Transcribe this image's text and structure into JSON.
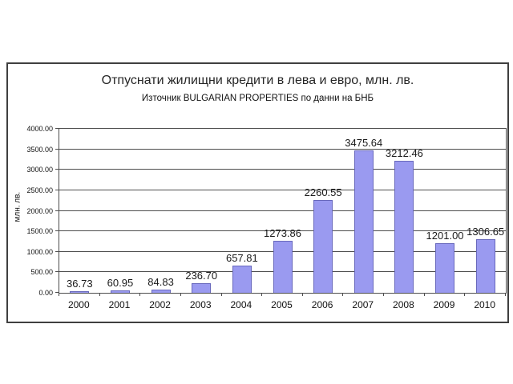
{
  "chart_data": {
    "type": "bar",
    "title": "Отпуснати жилищни кредити в лева и евро, млн. лв.",
    "subtitle": "Източник BULGARIAN PROPERTIES по данни на БНБ",
    "xlabel": "",
    "ylabel": "млн. лв.",
    "categories": [
      "2000",
      "2001",
      "2002",
      "2003",
      "2004",
      "2005",
      "2006",
      "2007",
      "2008",
      "2009",
      "2010"
    ],
    "values": [
      36.73,
      60.95,
      84.83,
      236.7,
      657.81,
      1273.86,
      2260.55,
      3475.64,
      3212.46,
      1201.0,
      1306.65
    ],
    "value_labels": [
      "36.73",
      "60.95",
      "84.83",
      "236.70",
      "657.81",
      "1273.86",
      "2260.55",
      "3475.64",
      "3212.46",
      "1201.00",
      "1306.65"
    ],
    "ylim": [
      0,
      4000
    ],
    "ytick_step": 500,
    "yticks": [
      "0.00",
      "500.00",
      "1000.00",
      "1500.00",
      "2000.00",
      "2500.00",
      "3000.00",
      "3500.00",
      "4000.00"
    ],
    "grid": "horizontal",
    "legend": "none",
    "bar_color": "#9a9af0",
    "bar_border_color": "#6868bc",
    "axis_color": "#4d4d4d",
    "text_color": "#1a1a1a",
    "background_color": "#ffffff"
  }
}
